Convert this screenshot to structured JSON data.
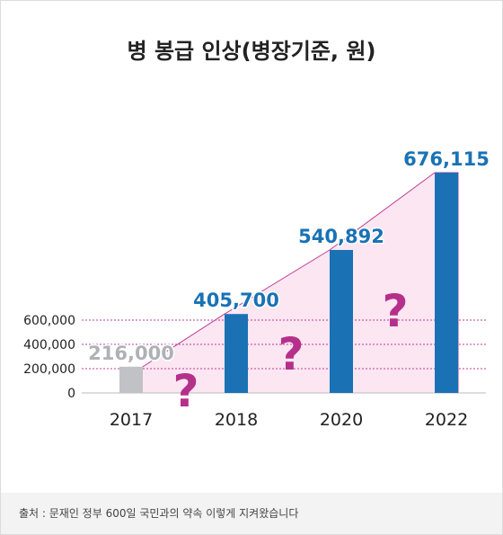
{
  "title": "병 봉급 인상(병장기준, 원)",
  "source": "출처 : 문재인 정부 600일 국민과의 약속 이렇게 지켜왔습니다",
  "colors": {
    "bar": "#1a72b5",
    "bar_past": "#c0c2c6",
    "label": "#1a72b5",
    "label_past": "#aeb1b6",
    "question": "#b5308a",
    "area_fill": "#fbe6f2",
    "area_line": "#c03c94",
    "grid": "#c03c94"
  },
  "chart_data": {
    "type": "bar",
    "title": "병 봉급 인상(병장기준, 원)",
    "categories": [
      "2017",
      "2018",
      "2020",
      "2022"
    ],
    "values": [
      216000,
      405700,
      540892,
      676115
    ],
    "value_labels": [
      "216,000",
      "405,700",
      "540,892",
      "676,115"
    ],
    "yticks": [
      "0",
      "200,000",
      "400,000",
      "600,000"
    ],
    "ytick_values": [
      0,
      200000,
      400000,
      600000
    ],
    "grid": "dashed at 200,000 / 400,000 / 600,000",
    "annotations": [
      "?",
      "?",
      "?"
    ],
    "xlabel": "",
    "ylabel": ""
  }
}
